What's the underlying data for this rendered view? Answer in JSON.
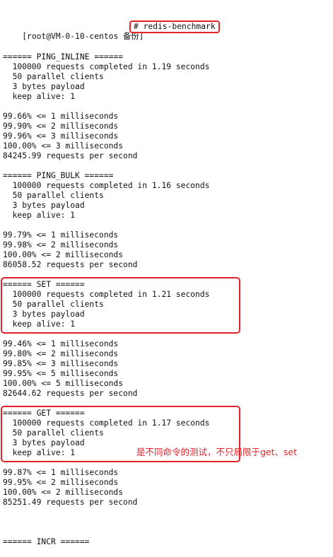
{
  "prompt": {
    "user_host": "[root@VM-0-10-centos 备份]",
    "command": "# redis-benchmark"
  },
  "blocks": [
    {
      "header": "====== PING_INLINE ======",
      "summary": [
        "  100000 requests completed in 1.19 seconds",
        "  50 parallel clients",
        "  3 bytes payload",
        "  keep alive: 1"
      ],
      "latency": [
        "99.66% <= 1 milliseconds",
        "99.90% <= 2 milliseconds",
        "99.96% <= 3 milliseconds",
        "100.00% <= 3 milliseconds"
      ],
      "rps": "84245.99 requests per second"
    },
    {
      "header": "====== PING_BULK ======",
      "summary": [
        "  100000 requests completed in 1.16 seconds",
        "  50 parallel clients",
        "  3 bytes payload",
        "  keep alive: 1"
      ],
      "latency": [
        "99.79% <= 1 milliseconds",
        "99.98% <= 2 milliseconds",
        "100.00% <= 2 milliseconds"
      ],
      "rps": "86058.52 requests per second"
    },
    {
      "header": "====== SET ======",
      "summary": [
        "  100000 requests completed in 1.21 seconds",
        "  50 parallel clients",
        "  3 bytes payload",
        "  keep alive: 1"
      ],
      "latency": [
        "99.46% <= 1 milliseconds",
        "99.80% <= 2 milliseconds",
        "99.85% <= 3 milliseconds",
        "99.95% <= 5 milliseconds",
        "100.00% <= 5 milliseconds"
      ],
      "rps": "82644.62 requests per second"
    },
    {
      "header": "====== GET ======",
      "summary": [
        "  100000 requests completed in 1.17 seconds",
        "  50 parallel clients",
        "  3 bytes payload",
        "  keep alive: 1"
      ],
      "latency": [
        "99.87% <= 1 milliseconds",
        "99.95% <= 2 milliseconds",
        "100.00% <= 2 milliseconds"
      ],
      "rps": "85251.49 requests per second"
    }
  ],
  "last_header": "====== INCR ======",
  "annotation": "是不同命令的测试，不只局限于get、set",
  "colors": {
    "highlight": "#e5222a",
    "text": "#111111",
    "background": "#ffffff"
  }
}
